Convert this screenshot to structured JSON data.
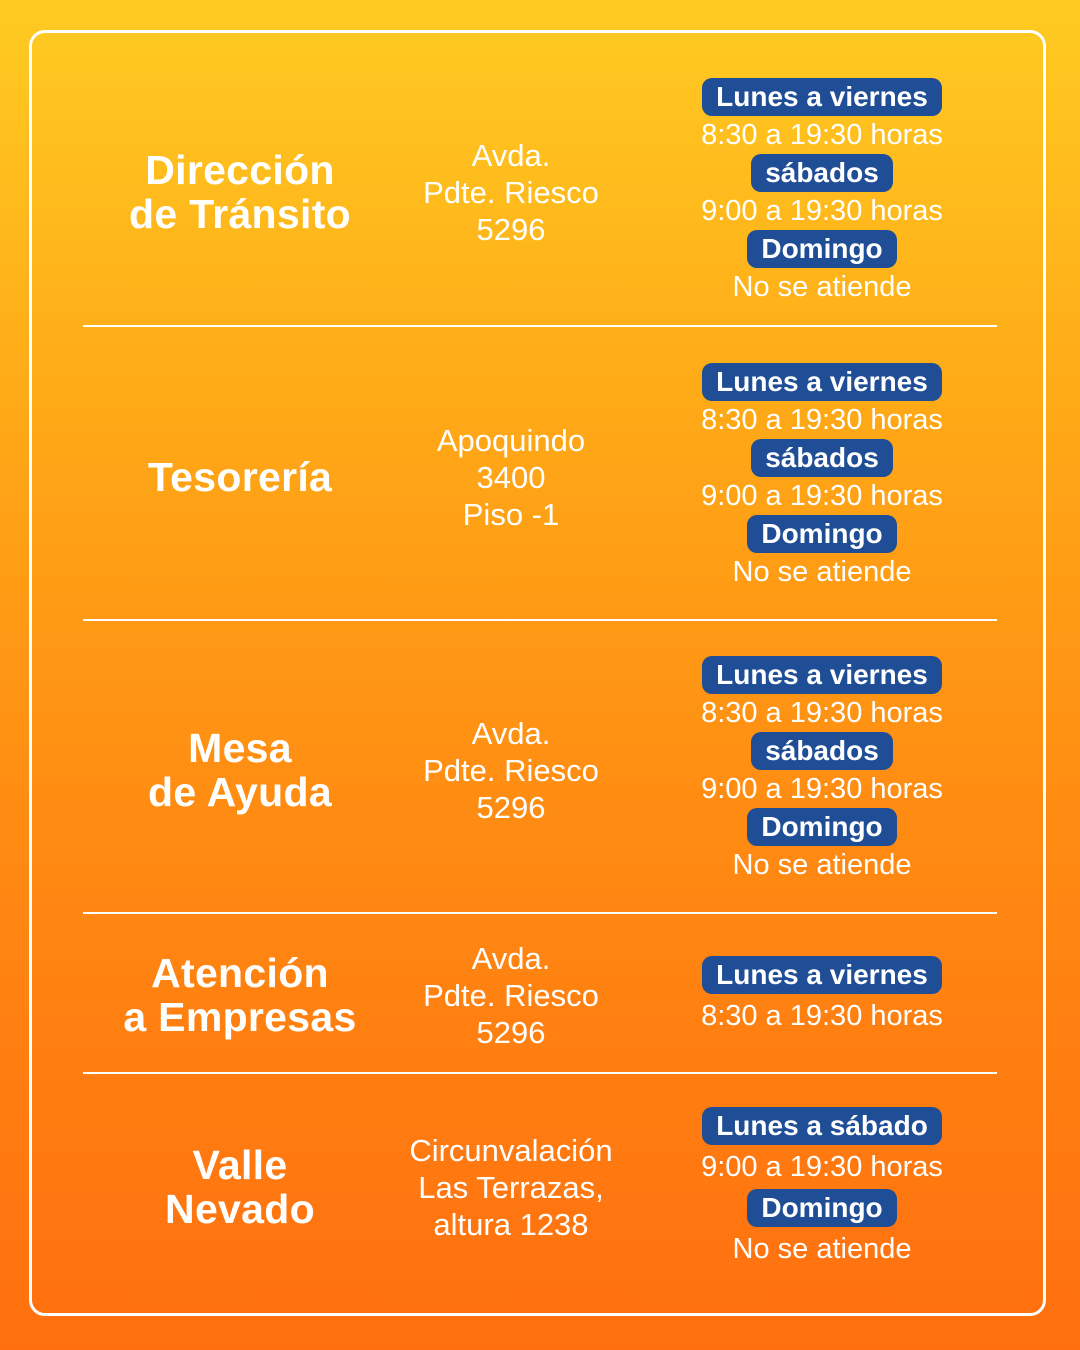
{
  "colors": {
    "badge_bg": "#1F4E96",
    "text": "#FFFFFF",
    "gradient_top": "#FFCB22",
    "gradient_bottom": "#FF6F0F"
  },
  "offices": [
    {
      "name": "Dirección\nde Tránsito",
      "address": "Avda.\nPdte. Riesco\n5296",
      "schedule": [
        {
          "label": "Lunes a viernes",
          "hours": "8:30 a 19:30 horas"
        },
        {
          "label": "sábados",
          "hours": "9:00 a 19:30 horas"
        },
        {
          "label": "Domingo",
          "hours": "No se atiende"
        }
      ]
    },
    {
      "name": "Tesorería",
      "address": "Apoquindo\n3400\nPiso -1",
      "schedule": [
        {
          "label": "Lunes a viernes",
          "hours": "8:30 a 19:30 horas"
        },
        {
          "label": "sábados",
          "hours": "9:00 a 19:30 horas"
        },
        {
          "label": "Domingo",
          "hours": "No se atiende"
        }
      ]
    },
    {
      "name": "Mesa\nde Ayuda",
      "address": "Avda.\nPdte. Riesco\n5296",
      "schedule": [
        {
          "label": "Lunes a viernes",
          "hours": "8:30 a 19:30 horas"
        },
        {
          "label": "sábados",
          "hours": "9:00 a 19:30 horas"
        },
        {
          "label": "Domingo",
          "hours": "No se atiende"
        }
      ]
    },
    {
      "name": "Atención\na Empresas",
      "address": "Avda.\nPdte. Riesco\n5296",
      "schedule": [
        {
          "label": "Lunes a viernes",
          "hours": "8:30 a 19:30 horas"
        }
      ]
    },
    {
      "name": "Valle\nNevado",
      "address": "Circunvalación\nLas Terrazas,\naltura 1238",
      "schedule": [
        {
          "label": "Lunes a sábado",
          "hours": "9:00 a 19:30 horas"
        },
        {
          "label": "Domingo",
          "hours": "No se atiende"
        }
      ]
    }
  ]
}
